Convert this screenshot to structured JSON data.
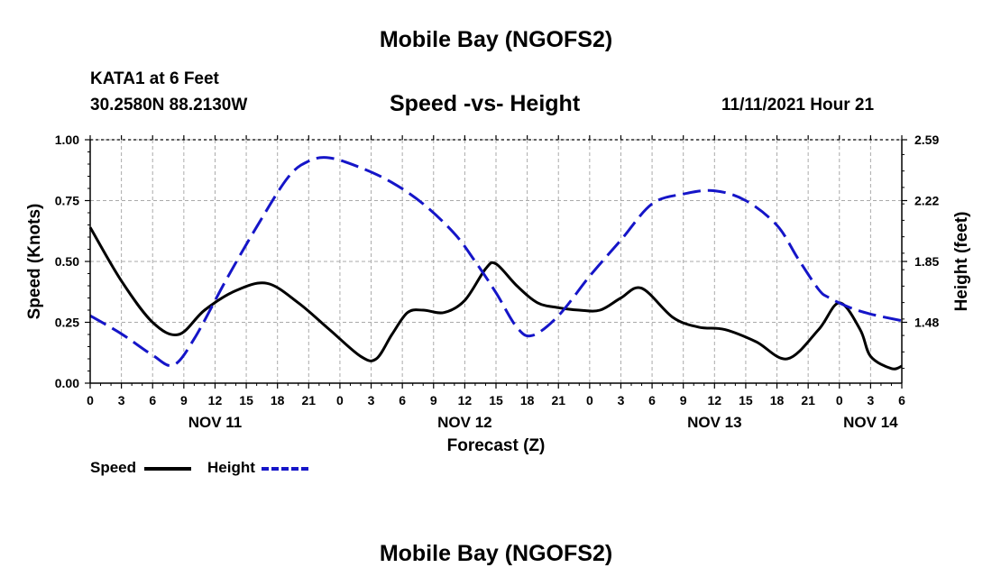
{
  "header": {
    "title": "Mobile Bay (NGOFS2)",
    "station": "KATA1 at 6 Feet",
    "coordinates": "30.2580N  88.2130W",
    "subtitle": "Speed -vs- Height",
    "datetime": "11/11/2021 Hour 21"
  },
  "footer": {
    "title": "Mobile Bay (NGOFS2)"
  },
  "legend": {
    "speed_label": "Speed",
    "height_label": "Height"
  },
  "colors": {
    "speed": "#000000",
    "height": "#1515c8",
    "grid": "#aaaaaa"
  },
  "chart_data": {
    "type": "line",
    "title": "Speed -vs- Height",
    "xlabel": "Forecast (Z)",
    "ylabel": "Speed (Knots)",
    "ylabel_right": "Height (feet)",
    "x_range_hours": [
      0,
      78
    ],
    "x_ticks_hours": [
      0,
      3,
      6,
      9,
      12,
      15,
      18,
      21,
      24,
      27,
      30,
      33,
      36,
      39,
      42,
      45,
      48,
      51,
      54,
      57,
      60,
      63,
      66,
      69,
      72,
      75,
      78
    ],
    "x_tick_labels": [
      "0",
      "3",
      "6",
      "9",
      "12",
      "15",
      "18",
      "21",
      "0",
      "3",
      "6",
      "9",
      "12",
      "15",
      "18",
      "21",
      "0",
      "3",
      "6",
      "9",
      "12",
      "15",
      "18",
      "21",
      "0",
      "3",
      "6"
    ],
    "day_labels": [
      {
        "hour": 12,
        "label": "NOV 11"
      },
      {
        "hour": 36,
        "label": "NOV 12"
      },
      {
        "hour": 60,
        "label": "NOV 13"
      },
      {
        "hour": 75,
        "label": "NOV 14"
      }
    ],
    "ylim": [
      0,
      1
    ],
    "y_ticks": [
      0,
      0.25,
      0.5,
      0.75,
      1.0
    ],
    "y_tick_labels": [
      "0.00",
      "0.25",
      "0.50",
      "0.75",
      "1.00"
    ],
    "y2lim": [
      1.11,
      2.59
    ],
    "y2_ticks": [
      1.48,
      1.85,
      2.22,
      2.59
    ],
    "y2_tick_labels": [
      "1.48",
      "1.85",
      "2.22",
      "2.59"
    ],
    "series": [
      {
        "name": "Speed",
        "axis": "left",
        "style": "solid",
        "x": [
          0,
          3,
          6,
          8.5,
          11,
          14,
          17,
          20,
          23,
          26,
          27.5,
          29,
          30.5,
          32,
          34,
          36,
          38,
          39,
          41,
          43,
          45,
          47,
          49,
          51,
          53,
          56,
          58.5,
          61,
          64,
          67,
          70,
          72,
          74,
          75,
          77,
          78
        ],
        "values": [
          0.64,
          0.42,
          0.25,
          0.2,
          0.3,
          0.38,
          0.41,
          0.33,
          0.22,
          0.11,
          0.1,
          0.2,
          0.29,
          0.3,
          0.29,
          0.34,
          0.47,
          0.49,
          0.4,
          0.33,
          0.31,
          0.3,
          0.3,
          0.35,
          0.39,
          0.27,
          0.23,
          0.22,
          0.17,
          0.1,
          0.22,
          0.33,
          0.22,
          0.11,
          0.06,
          0.07
        ]
      },
      {
        "name": "Height",
        "axis": "right",
        "style": "dashed",
        "x": [
          0,
          3,
          6,
          8,
          10,
          13,
          16,
          19,
          21,
          23,
          26,
          29,
          32,
          35,
          37,
          39,
          41,
          42.5,
          45,
          48,
          51,
          54,
          57,
          60,
          63,
          66,
          68,
          70,
          71,
          73,
          75,
          78
        ],
        "values": [
          1.52,
          1.41,
          1.28,
          1.22,
          1.38,
          1.73,
          2.06,
          2.36,
          2.46,
          2.48,
          2.42,
          2.33,
          2.2,
          2.02,
          1.85,
          1.66,
          1.45,
          1.4,
          1.52,
          1.76,
          1.98,
          2.2,
          2.26,
          2.28,
          2.22,
          2.07,
          1.87,
          1.68,
          1.63,
          1.57,
          1.53,
          1.49
        ]
      }
    ]
  }
}
